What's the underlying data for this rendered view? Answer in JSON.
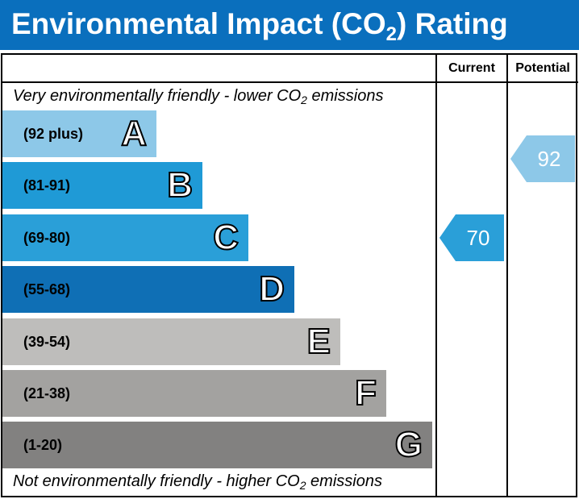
{
  "title": {
    "main": "Environmental Impact (CO",
    "sub": "2",
    "tail": ") Rating"
  },
  "columns": {
    "current": "Current",
    "potential": "Potential"
  },
  "top_caption": {
    "main": "Very environmentally friendly - lower CO",
    "sub": "2",
    "tail": " emissions"
  },
  "bottom_caption": {
    "main": "Not environmentally friendly - higher CO",
    "sub": "2",
    "tail": " emissions"
  },
  "chart_data": {
    "type": "bar",
    "bands": [
      {
        "letter": "A",
        "range": "(92 plus)",
        "color": "#8dc8e8",
        "min": 92,
        "max": 100
      },
      {
        "letter": "B",
        "range": "(81-91)",
        "color": "#1f9ad6",
        "min": 81,
        "max": 91
      },
      {
        "letter": "C",
        "range": "(69-80)",
        "color": "#2a9fd8",
        "min": 69,
        "max": 80
      },
      {
        "letter": "D",
        "range": "(55-68)",
        "color": "#0f6fb5",
        "min": 55,
        "max": 68
      },
      {
        "letter": "E",
        "range": "(39-54)",
        "color": "#bebdbb",
        "min": 39,
        "max": 54
      },
      {
        "letter": "F",
        "range": "(21-38)",
        "color": "#a3a2a0",
        "min": 21,
        "max": 38
      },
      {
        "letter": "G",
        "range": "(1-20)",
        "color": "#828180",
        "min": 1,
        "max": 20
      }
    ],
    "current": {
      "value": 70,
      "band": "C",
      "color": "#2a9fd8"
    },
    "potential": {
      "value": 92,
      "band": "A",
      "color": "#8dc8e8"
    }
  }
}
